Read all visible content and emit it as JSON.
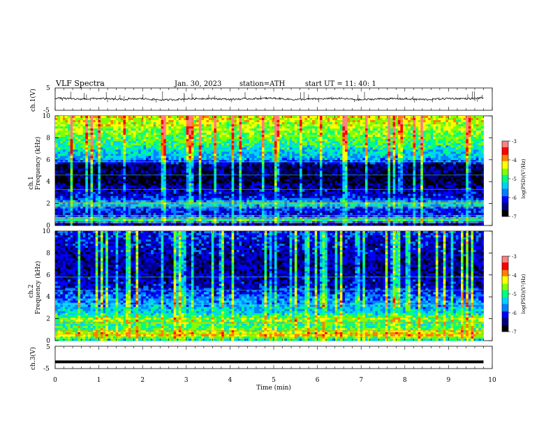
{
  "header": {
    "title": "VLF  Spectra",
    "date": "Jan.  30,  2023",
    "station": "station=ATH",
    "start": "start  UT  =    11: 40: 1"
  },
  "panels": {
    "ch1_wave": {
      "ylabel": "ch.1(V)",
      "yticks": [
        "5",
        "-5"
      ]
    },
    "ch1_spec": {
      "ylabel_line1": "ch.1",
      "ylabel_line2": "Frequency  (kHz)"
    },
    "ch2_spec": {
      "ylabel_line1": "ch.2",
      "ylabel_line2": "Frequency  (kHz)"
    },
    "ch3_wave": {
      "ylabel": "ch.3(V)",
      "yticks": [
        "5",
        "-5"
      ]
    }
  },
  "colorbar": {
    "label": "log(PSD)(V²/Hz)",
    "ticks": [
      "-3",
      "-4",
      "-5",
      "-6",
      "-7"
    ],
    "colors": [
      "#000000",
      "#000080",
      "#0000ff",
      "#0080ff",
      "#00d0ff",
      "#00ff80",
      "#80ff00",
      "#ffff00",
      "#ff8000",
      "#ff0000",
      "#ff8080",
      "#ffffff"
    ]
  },
  "chart_data": [
    {
      "type": "line",
      "name_key": "ch1_wave",
      "xlabel": "",
      "ylabel": "ch.1(V)",
      "xlim": [
        0,
        10
      ],
      "ylim": [
        -5,
        5
      ],
      "x": [
        0,
        0.5,
        1,
        1.5,
        2,
        2.5,
        3,
        3.5,
        4,
        4.5,
        5,
        5.5,
        6,
        6.5,
        7,
        7.5,
        8,
        8.5,
        9,
        9.5,
        9.8
      ],
      "y": [
        0.5,
        0.0,
        0.3,
        -0.2,
        0.2,
        -0.4,
        0.1,
        0.3,
        -0.1,
        0.2,
        0.4,
        -0.2,
        0.1,
        0.3,
        -0.3,
        0.2,
        0.1,
        -0.2,
        0.3,
        0.2,
        0.6
      ]
    },
    {
      "type": "heatmap",
      "name_key": "ch1_spec",
      "ylabel": "Frequency  (kHz)",
      "xlim": [
        0,
        10
      ],
      "ylim": [
        0,
        10
      ],
      "yticks": [
        "0",
        "2",
        "4",
        "6",
        "8",
        "10"
      ],
      "zlim": [
        -7,
        -3
      ],
      "freq_kHz": [
        10,
        9,
        8,
        7,
        6,
        5.5,
        5,
        4.5,
        4,
        3.5,
        3,
        2.5,
        2,
        1.5,
        1,
        0.5,
        0
      ],
      "mean_logPSD": [
        -4.3,
        -4.5,
        -4.8,
        -5.2,
        -5.6,
        -6.6,
        -6.5,
        -6.7,
        -6.7,
        -6.4,
        -6.3,
        -6.1,
        -5.2,
        -6.0,
        -6.2,
        -5.0,
        -6.8
      ]
    },
    {
      "type": "heatmap",
      "name_key": "ch2_spec",
      "ylabel": "Frequency  (kHz)",
      "xlim": [
        0,
        10
      ],
      "ylim": [
        0,
        10
      ],
      "yticks": [
        "0",
        "2",
        "4",
        "6",
        "8",
        "10"
      ],
      "zlim": [
        -7,
        -3
      ],
      "freq_kHz": [
        10,
        9,
        8,
        7,
        6,
        5.5,
        5,
        4.5,
        4,
        3.5,
        3,
        2.5,
        2,
        1.5,
        1,
        0.5,
        0
      ],
      "mean_logPSD": [
        -6.0,
        -6.2,
        -6.3,
        -6.4,
        -6.4,
        -6.3,
        -6.3,
        -6.0,
        -5.8,
        -5.6,
        -5.5,
        -5.3,
        -4.6,
        -5.0,
        -4.8,
        -4.2,
        -5.4
      ]
    },
    {
      "type": "line",
      "name_key": "ch3_wave",
      "xlabel": "Time  (min)",
      "ylabel": "ch.3(V)",
      "xlim": [
        0,
        10
      ],
      "ylim": [
        -5,
        5
      ],
      "xticks": [
        "0",
        "1",
        "2",
        "3",
        "4",
        "5",
        "6",
        "7",
        "8",
        "9",
        "10"
      ],
      "x": [
        0,
        9.8
      ],
      "y": [
        -2,
        -2
      ]
    }
  ]
}
